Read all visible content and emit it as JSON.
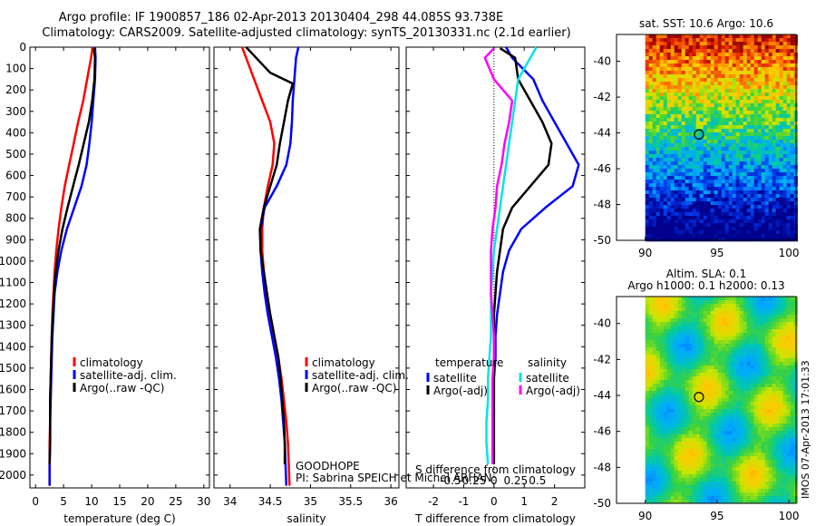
{
  "title_line1": "Argo profile: IF 1900857_186 02-Apr-2013 20130404_298 44.085S 93.738E",
  "title_line2": "Climatology: CARS2009. Satellite-adjusted climatology: synTS_20130331.nc (2.1d earlier)",
  "program": "GOODHOPE",
  "pi": "PI: Sabrina SPEICH et Michel ARHAN",
  "footer": "IMOS 07-Apr-2013 17:01:33",
  "depth_ticks": [
    0,
    100,
    200,
    300,
    400,
    500,
    600,
    700,
    800,
    900,
    1000,
    1100,
    1200,
    1300,
    1400,
    1500,
    1600,
    1700,
    1800,
    1900,
    2000
  ],
  "chart_data": [
    {
      "type": "line",
      "xlabel": "temperature (deg C)",
      "xlim": [
        -1,
        31
      ],
      "ylim": [
        2060,
        0
      ],
      "xticks": [
        0,
        5,
        10,
        15,
        20,
        25,
        30
      ],
      "legend": [
        "climatology",
        "satellite-adj. clim.",
        "Argo(..raw -QC)"
      ],
      "legend_placement": "lower-center",
      "series": [
        {
          "name": "climatology",
          "color": "#ff0000",
          "x": [
            10.2,
            9.9,
            9.2,
            8.5,
            7.6,
            6.8,
            6.0,
            5.2,
            4.6,
            4.1,
            3.7,
            3.4,
            3.2,
            3.0,
            2.9,
            2.8,
            2.7,
            2.6,
            2.6,
            2.5,
            2.5,
            2.5
          ],
          "y": [
            0,
            50,
            150,
            250,
            350,
            450,
            550,
            650,
            750,
            850,
            950,
            1050,
            1150,
            1250,
            1350,
            1450,
            1550,
            1650,
            1750,
            1850,
            1950,
            2050
          ]
        },
        {
          "name": "satellite-adj. clim.",
          "color": "#0000ff",
          "x": [
            10.6,
            10.7,
            10.6,
            10.3,
            10.0,
            9.6,
            9.1,
            8.2,
            6.9,
            5.6,
            4.6,
            3.9,
            3.4,
            3.2,
            3.0,
            2.9,
            2.8,
            2.7,
            2.6,
            2.6,
            2.5,
            2.5
          ],
          "y": [
            0,
            50,
            150,
            250,
            350,
            450,
            550,
            650,
            750,
            850,
            950,
            1050,
            1150,
            1250,
            1350,
            1450,
            1550,
            1650,
            1750,
            1850,
            1950,
            2050
          ]
        },
        {
          "name": "Argo(..raw -QC)",
          "color": "#000000",
          "x": [
            10.4,
            10.6,
            10.5,
            10.1,
            9.5,
            8.6,
            7.7,
            6.7,
            5.7,
            4.8,
            4.1,
            3.6,
            3.3,
            3.1,
            2.9,
            2.8,
            2.7,
            2.6,
            2.6,
            2.6,
            2.5
          ],
          "y": [
            5,
            50,
            150,
            250,
            350,
            450,
            550,
            650,
            750,
            850,
            950,
            1050,
            1150,
            1250,
            1350,
            1450,
            1550,
            1650,
            1750,
            1850,
            1950
          ]
        }
      ]
    },
    {
      "type": "line",
      "xlabel": "salinity",
      "xlim": [
        33.8,
        36.1
      ],
      "ylim": [
        2060,
        0
      ],
      "xticks": [
        34,
        34.5,
        35,
        35.5,
        36
      ],
      "legend": [
        "climatology",
        "satellite-adj. clim.",
        "Argo(..raw -QC)"
      ],
      "legend_placement": "lower-right",
      "series": [
        {
          "name": "climatology",
          "color": "#ff0000",
          "x": [
            34.15,
            34.2,
            34.3,
            34.4,
            34.5,
            34.55,
            34.53,
            34.47,
            34.42,
            34.4,
            34.4,
            34.42,
            34.45,
            34.5,
            34.55,
            34.6,
            34.64,
            34.67,
            34.7,
            34.72,
            34.73,
            34.74
          ],
          "y": [
            0,
            50,
            150,
            250,
            350,
            450,
            550,
            650,
            750,
            850,
            950,
            1050,
            1150,
            1250,
            1350,
            1450,
            1550,
            1650,
            1750,
            1850,
            1950,
            2050
          ]
        },
        {
          "name": "satellite-adj. clim.",
          "color": "#0000ff",
          "x": [
            34.85,
            34.82,
            34.8,
            34.78,
            34.77,
            34.75,
            34.7,
            34.58,
            34.43,
            34.38,
            34.38,
            34.4,
            34.43,
            34.47,
            34.52,
            34.57,
            34.61,
            34.64,
            34.66,
            34.68,
            34.69,
            34.7
          ],
          "y": [
            0,
            50,
            150,
            250,
            350,
            450,
            550,
            650,
            750,
            850,
            950,
            1050,
            1150,
            1250,
            1350,
            1450,
            1550,
            1650,
            1750,
            1850,
            1950,
            2050
          ]
        },
        {
          "name": "Argo(..raw -QC)",
          "color": "#000000",
          "x": [
            34.2,
            34.35,
            34.5,
            34.78,
            34.72,
            34.67,
            34.62,
            34.58,
            34.5,
            34.42,
            34.37,
            34.38,
            34.42,
            34.46,
            34.5,
            34.55,
            34.6,
            34.63,
            34.65,
            34.67,
            34.68,
            34.68
          ],
          "y": [
            0,
            60,
            120,
            170,
            250,
            350,
            450,
            550,
            650,
            750,
            850,
            950,
            1050,
            1150,
            1250,
            1350,
            1450,
            1550,
            1650,
            1750,
            1850,
            1950
          ]
        }
      ]
    },
    {
      "type": "line",
      "xlabel": "T difference from climatology",
      "xlabel_top": "S difference from climatology",
      "xlim": [
        -2.9,
        3.0
      ],
      "ylim": [
        2060,
        0
      ],
      "xticks": [
        -2,
        -1,
        0,
        1,
        2
      ],
      "xticks_top": [
        -0.5,
        -0.25,
        0,
        0.25,
        0.5
      ],
      "legend_groups": [
        {
          "title": "temperature",
          "items": [
            "satellite",
            "Argo(-adj)"
          ]
        },
        {
          "title": "salinity",
          "items": [
            "satellite",
            "Argo(-adj)"
          ]
        }
      ],
      "series": [
        {
          "name": "temperature satellite",
          "color": "#0000ff",
          "x": [
            0.4,
            0.6,
            1.3,
            1.6,
            2.0,
            2.4,
            2.8,
            2.6,
            1.7,
            0.9,
            0.5,
            0.3,
            0.2,
            0.1,
            0.05,
            0.05,
            0.0,
            0.0,
            0.0,
            0.0,
            0.0
          ],
          "y": [
            0,
            50,
            150,
            250,
            350,
            450,
            550,
            650,
            750,
            850,
            950,
            1050,
            1150,
            1250,
            1350,
            1450,
            1550,
            1650,
            1750,
            1850,
            1950
          ]
        },
        {
          "name": "temperature Argo(-adj)",
          "color": "#000000",
          "x": [
            0.2,
            0.7,
            0.8,
            1.2,
            1.6,
            1.9,
            1.8,
            1.2,
            0.6,
            0.3,
            0.2,
            0.1,
            0.05,
            0.0,
            0.0,
            0.0,
            0.0,
            0.0,
            0.0,
            0.0,
            0.0
          ],
          "y": [
            5,
            50,
            150,
            250,
            350,
            450,
            550,
            650,
            750,
            850,
            950,
            1050,
            1150,
            1250,
            1350,
            1450,
            1550,
            1650,
            1750,
            1850,
            1950
          ]
        },
        {
          "name": "salinity satellite",
          "color": "#00e5e5",
          "x": [
            1.4,
            1.2,
            0.8,
            0.7,
            0.6,
            0.5,
            0.4,
            0.3,
            0.2,
            0.1,
            0.0,
            -0.05,
            -0.1,
            -0.1,
            -0.1,
            -0.15,
            -0.2,
            -0.2,
            -0.25,
            -0.25,
            -0.2
          ],
          "y": [
            0,
            50,
            150,
            250,
            350,
            450,
            550,
            650,
            750,
            850,
            950,
            1050,
            1150,
            1250,
            1350,
            1450,
            1550,
            1650,
            1750,
            1850,
            1950
          ]
        },
        {
          "name": "salinity Argo(-adj)",
          "color": "#ff00ff",
          "x": [
            0.0,
            -0.3,
            0.0,
            0.6,
            0.5,
            0.35,
            0.25,
            0.1,
            0.05,
            -0.05,
            -0.1,
            -0.1,
            -0.1,
            -0.05,
            0.0,
            0.0,
            -0.05,
            -0.05,
            -0.05,
            -0.05,
            -0.05
          ],
          "y": [
            5,
            50,
            150,
            250,
            350,
            450,
            550,
            650,
            750,
            850,
            950,
            1050,
            1150,
            1250,
            1350,
            1450,
            1550,
            1650,
            1750,
            1850,
            1950
          ]
        }
      ]
    },
    {
      "type": "heatmap",
      "title": "sat. SST: 10.6 Argo: 10.6",
      "xlim": [
        88,
        100.5
      ],
      "ylim": [
        -50,
        -38.5
      ],
      "xticks": [
        90,
        95,
        100
      ],
      "yticks": [
        -40,
        -42,
        -44,
        -46,
        -48,
        -50
      ],
      "marker": {
        "lon": 93.738,
        "lat": -44.085
      }
    },
    {
      "type": "heatmap",
      "title": "Altim. SLA: 0.1",
      "title_line2": "Argo h1000: 0.1 h2000: 0.13",
      "xlim": [
        88,
        100.5
      ],
      "ylim": [
        -50,
        -38.5
      ],
      "xticks": [
        90,
        95,
        100
      ],
      "yticks": [
        -40,
        -42,
        -44,
        -46,
        -48,
        -50
      ],
      "marker": {
        "lon": 93.738,
        "lat": -44.085
      }
    }
  ]
}
